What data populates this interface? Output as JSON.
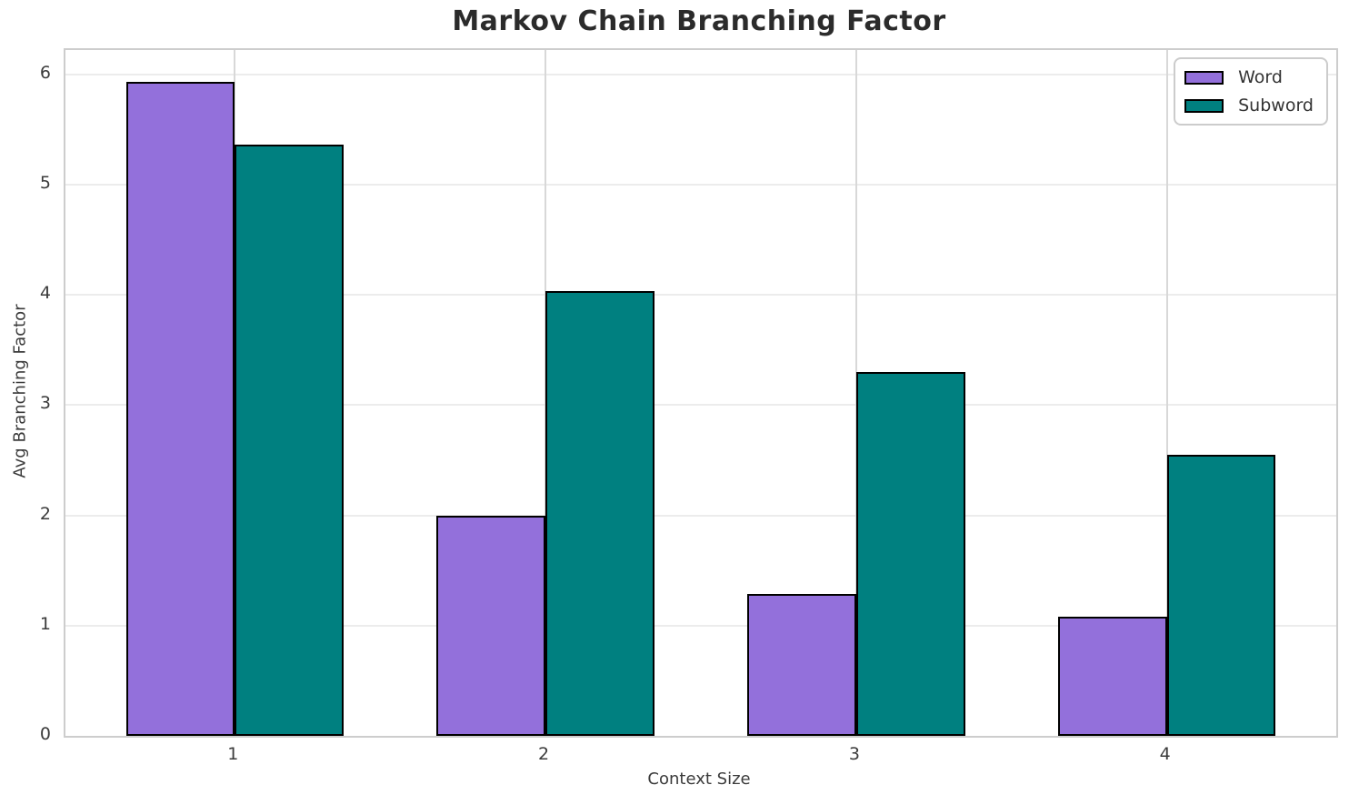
{
  "chart_data": {
    "type": "bar",
    "title": "Markov Chain Branching Factor",
    "xlabel": "Context Size",
    "ylabel": "Avg Branching Factor",
    "categories": [
      "1",
      "2",
      "3",
      "4"
    ],
    "series": [
      {
        "name": "Word",
        "color": "#9370DB",
        "values": [
          5.93,
          2.0,
          1.29,
          1.08
        ]
      },
      {
        "name": "Subword",
        "color": "#008080",
        "values": [
          5.36,
          4.03,
          3.3,
          2.55
        ]
      }
    ],
    "bar_edge_color": "#000000",
    "bar_width": 0.35,
    "xlim": [
      0.455,
      4.545
    ],
    "ylim": [
      0,
      6.22
    ],
    "yticks": [
      0,
      1,
      2,
      3,
      4,
      5,
      6
    ],
    "grid": true,
    "legend_position": "upper right"
  }
}
